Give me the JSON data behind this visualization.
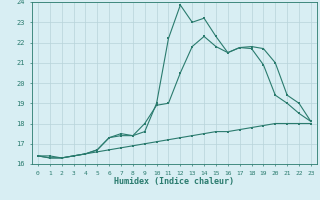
{
  "xlabel": "Humidex (Indice chaleur)",
  "bg_color": "#d8eef3",
  "line_color": "#2a7b6e",
  "grid_color": "#b8d4da",
  "xlim": [
    -0.5,
    23.5
  ],
  "ylim": [
    16,
    24
  ],
  "yticks": [
    16,
    17,
    18,
    19,
    20,
    21,
    22,
    23,
    24
  ],
  "xticks": [
    0,
    1,
    2,
    3,
    4,
    5,
    6,
    7,
    8,
    9,
    10,
    11,
    12,
    13,
    14,
    15,
    16,
    17,
    18,
    19,
    20,
    21,
    22,
    23
  ],
  "series1_x": [
    0,
    1,
    2,
    3,
    4,
    5,
    6,
    7,
    8,
    9,
    10,
    11,
    12,
    13,
    14,
    15,
    16,
    17,
    18,
    19,
    20,
    21,
    22,
    23
  ],
  "series1_y": [
    16.4,
    16.4,
    16.3,
    16.4,
    16.5,
    16.6,
    16.7,
    16.8,
    16.9,
    17.0,
    17.1,
    17.2,
    17.3,
    17.4,
    17.5,
    17.6,
    17.6,
    17.7,
    17.8,
    17.9,
    18.0,
    18.0,
    18.0,
    18.0
  ],
  "series2_x": [
    0,
    1,
    2,
    3,
    4,
    5,
    6,
    7,
    8,
    9,
    10,
    11,
    12,
    13,
    14,
    15,
    16,
    17,
    18,
    19,
    20,
    21,
    22,
    23
  ],
  "series2_y": [
    16.4,
    16.3,
    16.3,
    16.4,
    16.5,
    16.7,
    17.3,
    17.5,
    17.4,
    18.0,
    18.9,
    19.0,
    20.5,
    21.8,
    22.3,
    21.8,
    21.5,
    21.75,
    21.7,
    20.9,
    19.4,
    19.0,
    18.5,
    18.1
  ],
  "series3_x": [
    0,
    1,
    2,
    3,
    4,
    5,
    6,
    7,
    8,
    9,
    10,
    11,
    12,
    13,
    14,
    15,
    16,
    17,
    18,
    19,
    20,
    21,
    22,
    23
  ],
  "series3_y": [
    16.4,
    16.3,
    16.3,
    16.4,
    16.5,
    16.7,
    17.3,
    17.4,
    17.4,
    17.6,
    19.0,
    22.2,
    23.85,
    23.0,
    23.2,
    22.3,
    21.5,
    21.75,
    21.8,
    21.7,
    21.0,
    19.4,
    19.0,
    18.1
  ]
}
